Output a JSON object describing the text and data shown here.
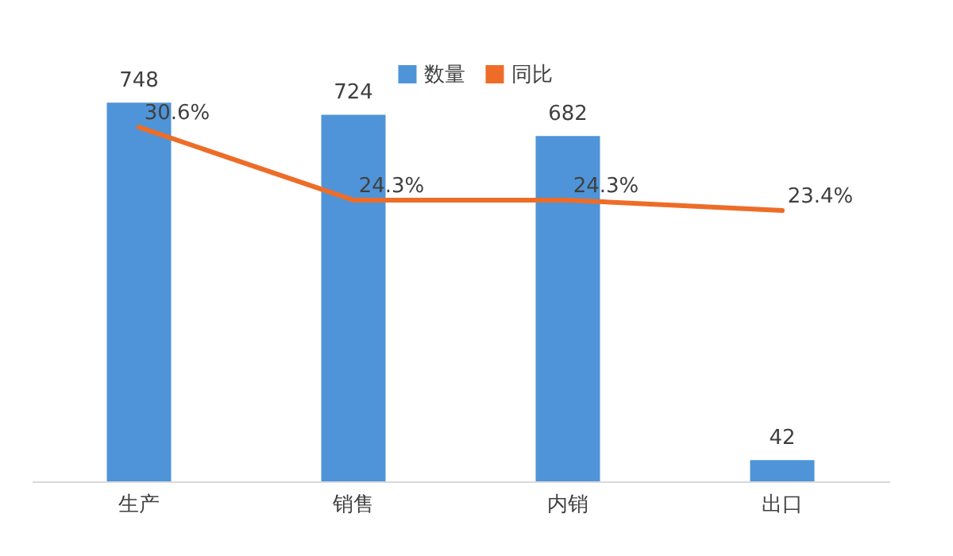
{
  "chart_data": {
    "type": "bar",
    "categories": [
      "生产",
      "销售",
      "内销",
      "出口"
    ],
    "series": [
      {
        "name": "数量",
        "color": "#4f94d8",
        "values": [
          748,
          724,
          682,
          42
        ]
      },
      {
        "name": "同比",
        "color": "#ed6d28",
        "type": "line",
        "axis": "y2",
        "values": [
          30.6,
          24.3,
          24.3,
          23.4
        ],
        "value_labels": [
          "30.6%",
          "24.3%",
          "24.3%",
          "23.4%"
        ]
      }
    ],
    "data_labels": true,
    "tick_labels": "x",
    "legend": "top"
  }
}
